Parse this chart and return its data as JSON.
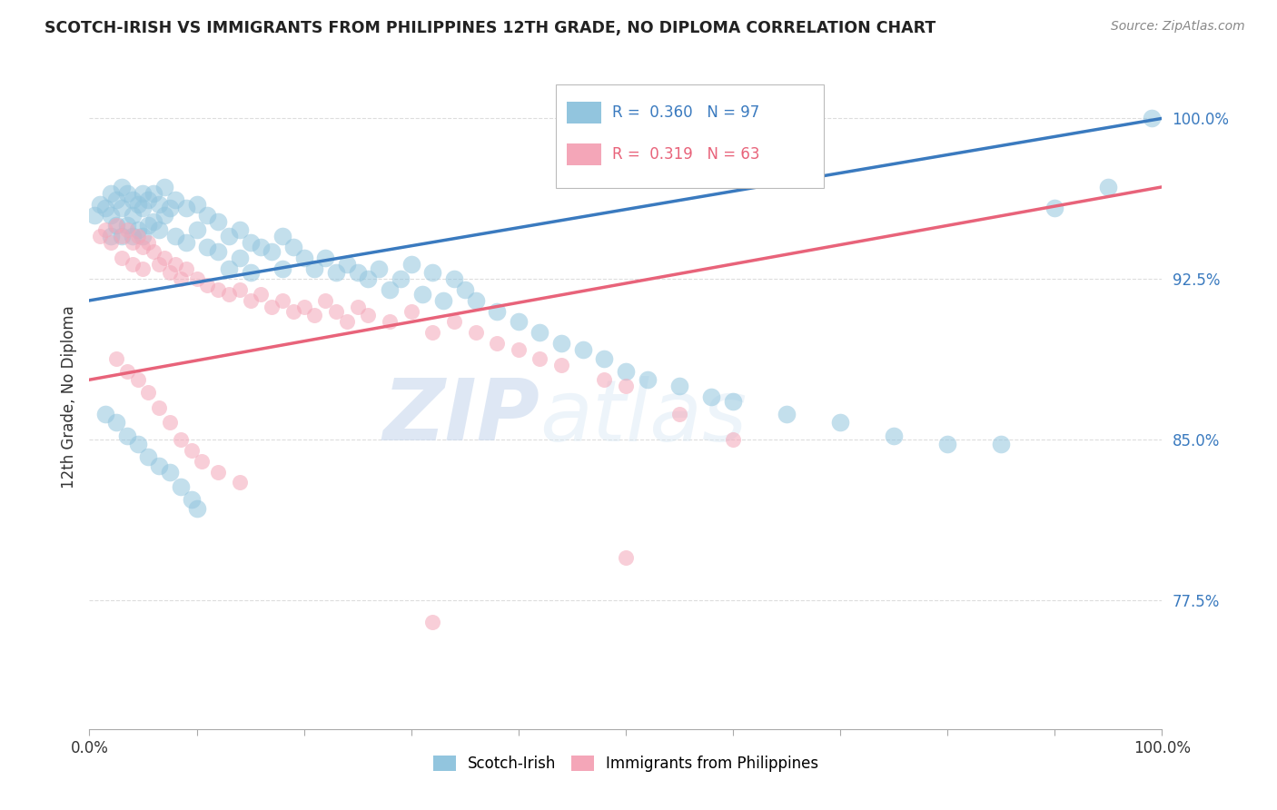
{
  "title": "SCOTCH-IRISH VS IMMIGRANTS FROM PHILIPPINES 12TH GRADE, NO DIPLOMA CORRELATION CHART",
  "source": "Source: ZipAtlas.com",
  "ylabel": "12th Grade, No Diploma",
  "ytick_labels": [
    "77.5%",
    "85.0%",
    "92.5%",
    "100.0%"
  ],
  "ytick_values": [
    0.775,
    0.85,
    0.925,
    1.0
  ],
  "xmin": 0.0,
  "xmax": 1.0,
  "ymin": 0.715,
  "ymax": 1.025,
  "blue_R": 0.36,
  "blue_N": 97,
  "pink_R": 0.319,
  "pink_N": 63,
  "blue_color": "#92c5de",
  "pink_color": "#f4a6b8",
  "blue_line_color": "#3a7abf",
  "pink_line_color": "#e8637a",
  "legend_label_blue": "Scotch-Irish",
  "legend_label_pink": "Immigrants from Philippines",
  "blue_line_x0": 0.0,
  "blue_line_y0": 0.915,
  "blue_line_x1": 1.0,
  "blue_line_y1": 1.0,
  "pink_line_x0": 0.0,
  "pink_line_y0": 0.878,
  "pink_line_x1": 1.0,
  "pink_line_y1": 0.968,
  "watermark_zip": "ZIP",
  "watermark_atlas": "atlas",
  "grid_color": "#dddddd",
  "dot_size_blue": 200,
  "dot_size_pink": 150,
  "dot_alpha": 0.55,
  "blue_seed": 7,
  "pink_seed": 13,
  "blue_x": [
    0.005,
    0.01,
    0.015,
    0.02,
    0.02,
    0.02,
    0.025,
    0.025,
    0.03,
    0.03,
    0.03,
    0.035,
    0.035,
    0.04,
    0.04,
    0.04,
    0.045,
    0.045,
    0.05,
    0.05,
    0.05,
    0.055,
    0.055,
    0.06,
    0.06,
    0.065,
    0.065,
    0.07,
    0.07,
    0.075,
    0.08,
    0.08,
    0.09,
    0.09,
    0.1,
    0.1,
    0.11,
    0.11,
    0.12,
    0.12,
    0.13,
    0.13,
    0.14,
    0.14,
    0.15,
    0.15,
    0.16,
    0.17,
    0.18,
    0.18,
    0.19,
    0.2,
    0.21,
    0.22,
    0.23,
    0.24,
    0.25,
    0.26,
    0.27,
    0.28,
    0.29,
    0.3,
    0.31,
    0.32,
    0.33,
    0.34,
    0.35,
    0.36,
    0.38,
    0.4,
    0.42,
    0.44,
    0.46,
    0.48,
    0.5,
    0.52,
    0.55,
    0.58,
    0.6,
    0.65,
    0.7,
    0.75,
    0.8,
    0.85,
    0.9,
    0.95,
    0.99,
    0.015,
    0.025,
    0.035,
    0.045,
    0.055,
    0.065,
    0.075,
    0.085,
    0.095,
    0.1
  ],
  "blue_y": [
    0.955,
    0.96,
    0.958,
    0.965,
    0.955,
    0.945,
    0.962,
    0.95,
    0.968,
    0.958,
    0.945,
    0.965,
    0.95,
    0.962,
    0.955,
    0.945,
    0.96,
    0.948,
    0.965,
    0.958,
    0.945,
    0.962,
    0.95,
    0.965,
    0.952,
    0.96,
    0.948,
    0.968,
    0.955,
    0.958,
    0.962,
    0.945,
    0.958,
    0.942,
    0.96,
    0.948,
    0.955,
    0.94,
    0.952,
    0.938,
    0.945,
    0.93,
    0.948,
    0.935,
    0.942,
    0.928,
    0.94,
    0.938,
    0.945,
    0.93,
    0.94,
    0.935,
    0.93,
    0.935,
    0.928,
    0.932,
    0.928,
    0.925,
    0.93,
    0.92,
    0.925,
    0.932,
    0.918,
    0.928,
    0.915,
    0.925,
    0.92,
    0.915,
    0.91,
    0.905,
    0.9,
    0.895,
    0.892,
    0.888,
    0.882,
    0.878,
    0.875,
    0.87,
    0.868,
    0.862,
    0.858,
    0.852,
    0.848,
    0.848,
    0.958,
    0.968,
    1.0,
    0.862,
    0.858,
    0.852,
    0.848,
    0.842,
    0.838,
    0.835,
    0.828,
    0.822,
    0.818
  ],
  "pink_x": [
    0.01,
    0.015,
    0.02,
    0.025,
    0.03,
    0.03,
    0.035,
    0.04,
    0.04,
    0.045,
    0.05,
    0.05,
    0.055,
    0.06,
    0.065,
    0.07,
    0.075,
    0.08,
    0.085,
    0.09,
    0.1,
    0.11,
    0.12,
    0.13,
    0.14,
    0.15,
    0.16,
    0.17,
    0.18,
    0.19,
    0.2,
    0.21,
    0.22,
    0.23,
    0.24,
    0.25,
    0.26,
    0.28,
    0.3,
    0.32,
    0.34,
    0.36,
    0.38,
    0.4,
    0.42,
    0.44,
    0.48,
    0.5,
    0.55,
    0.6,
    0.025,
    0.035,
    0.045,
    0.055,
    0.065,
    0.075,
    0.085,
    0.095,
    0.105,
    0.12,
    0.14,
    0.32,
    0.5
  ],
  "pink_y": [
    0.945,
    0.948,
    0.942,
    0.95,
    0.945,
    0.935,
    0.948,
    0.942,
    0.932,
    0.945,
    0.94,
    0.93,
    0.942,
    0.938,
    0.932,
    0.935,
    0.928,
    0.932,
    0.925,
    0.93,
    0.925,
    0.922,
    0.92,
    0.918,
    0.92,
    0.915,
    0.918,
    0.912,
    0.915,
    0.91,
    0.912,
    0.908,
    0.915,
    0.91,
    0.905,
    0.912,
    0.908,
    0.905,
    0.91,
    0.9,
    0.905,
    0.9,
    0.895,
    0.892,
    0.888,
    0.885,
    0.878,
    0.875,
    0.862,
    0.85,
    0.888,
    0.882,
    0.878,
    0.872,
    0.865,
    0.858,
    0.85,
    0.845,
    0.84,
    0.835,
    0.83,
    0.765,
    0.795
  ]
}
